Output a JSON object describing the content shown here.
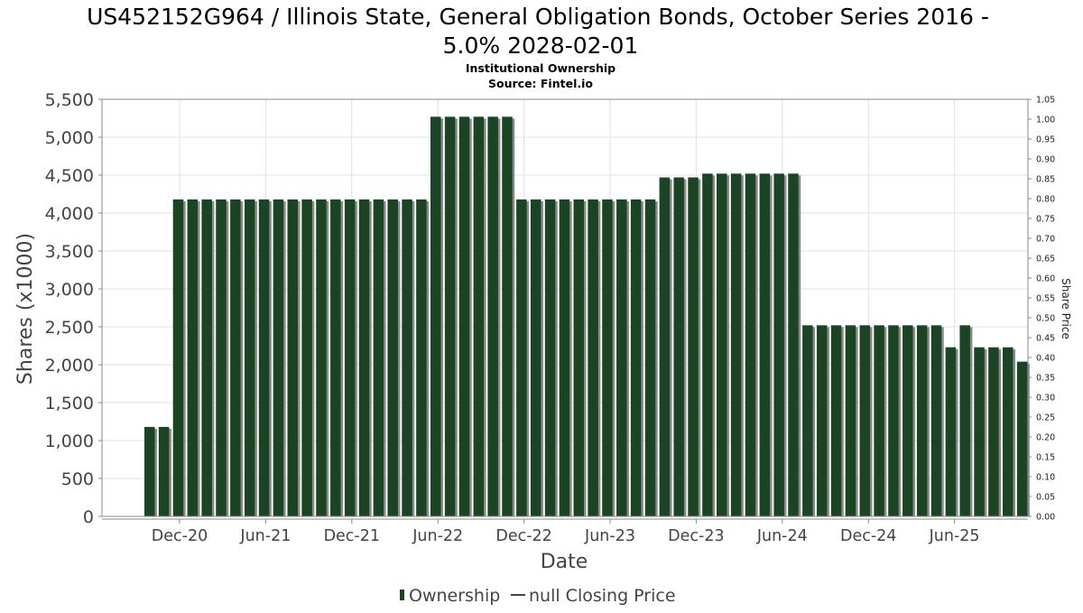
{
  "header": {
    "title_line1": "US452152G964 / Illinois State, General Obligation Bonds, October Series 2016 -",
    "title_line2": "5.0% 2028-02-01",
    "subtitle": "Institutional Ownership",
    "source": "Source: Fintel.io"
  },
  "legend": {
    "ownership_label": "Ownership",
    "price_label": "null Closing Price"
  },
  "colors": {
    "bar": "#1b4424",
    "bar_shadow": "#8a8a8a",
    "grid": "#e2e2e2",
    "axis": "#888888"
  },
  "chart_data": {
    "type": "bar",
    "title": "US452152G964 / Illinois State, General Obligation Bonds, October Series 2016 - 5.0% 2028-02-01",
    "xlabel": "Date",
    "ylabel": "Shares (x1000)",
    "y2label": "Share Price",
    "ylim": [
      0,
      5500
    ],
    "y2lim": [
      0,
      1.05
    ],
    "grid": true,
    "legend_position": "bottom",
    "x_tick_labels": [
      "Dec-20",
      "Jun-21",
      "Dec-21",
      "Jun-22",
      "Dec-22",
      "Jun-23",
      "Dec-23",
      "Jun-24",
      "Dec-24",
      "Jun-25"
    ],
    "y_tick_labels": [
      "0",
      "500",
      "1,000",
      "1,500",
      "2,000",
      "2,500",
      "3,000",
      "3,500",
      "4,000",
      "4,500",
      "5,000",
      "5,500"
    ],
    "y2_tick_labels": [
      "0.00",
      "0.05",
      "0.10",
      "0.15",
      "0.20",
      "0.25",
      "0.30",
      "0.35",
      "0.40",
      "0.45",
      "0.50",
      "0.55",
      "0.60",
      "0.65",
      "0.70",
      "0.75",
      "0.80",
      "0.85",
      "0.90",
      "0.95",
      "1.00",
      "1.05"
    ],
    "series": [
      {
        "name": "Ownership",
        "values": [
          1180,
          1180,
          4180,
          4180,
          4180,
          4180,
          4180,
          4180,
          4180,
          4180,
          4180,
          4180,
          4180,
          4180,
          4180,
          4180,
          4180,
          4180,
          4180,
          4180,
          5270,
          5270,
          5270,
          5270,
          5270,
          5270,
          4180,
          4180,
          4180,
          4180,
          4180,
          4180,
          4180,
          4180,
          4180,
          4180,
          4470,
          4470,
          4470,
          4520,
          4520,
          4520,
          4520,
          4520,
          4520,
          4520,
          2520,
          2520,
          2520,
          2520,
          2520,
          2520,
          2520,
          2520,
          2520,
          2520,
          2230,
          2520,
          2230,
          2230,
          2230,
          2040
        ]
      }
    ]
  }
}
